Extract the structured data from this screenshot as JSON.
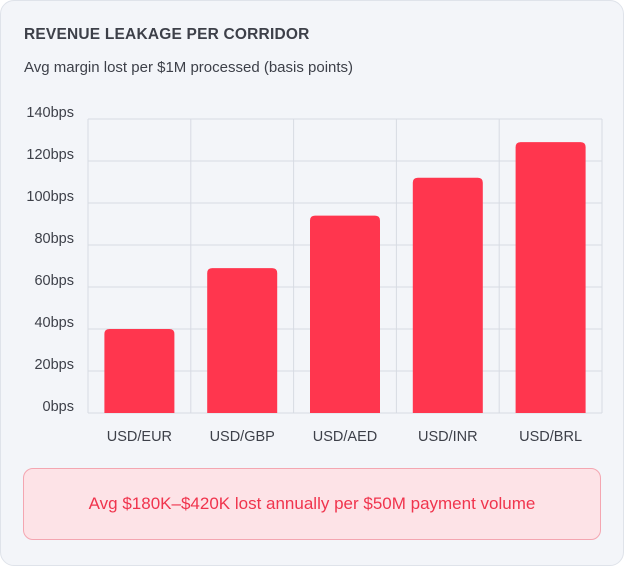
{
  "header": {
    "title": "REVENUE LEAKAGE PER CORRIDOR",
    "subtitle": "Avg margin lost per $1M processed (basis points)"
  },
  "callout": {
    "text": "Avg $180K–$420K lost annually per $50M payment volume"
  },
  "colors": {
    "bar": "#ff364e",
    "grid": "#d7dbe3",
    "callout_bg": "#fde3e7",
    "callout_text": "#f0344d"
  },
  "chart_data": {
    "type": "bar",
    "title": "REVENUE LEAKAGE PER CORRIDOR",
    "subtitle": "Avg margin lost per $1M processed (basis points)",
    "categories": [
      "USD/EUR",
      "USD/GBP",
      "USD/AED",
      "USD/INR",
      "USD/BRL"
    ],
    "values": [
      40,
      69,
      94,
      112,
      129
    ],
    "unit": "bps",
    "ylim": [
      0,
      140
    ],
    "yticks": [
      0,
      20,
      40,
      60,
      80,
      100,
      120,
      140
    ],
    "ytick_labels": [
      "0bps",
      "20bps",
      "40bps",
      "60bps",
      "80bps",
      "100bps",
      "120bps",
      "140bps"
    ],
    "grid": true,
    "legend": "none"
  }
}
